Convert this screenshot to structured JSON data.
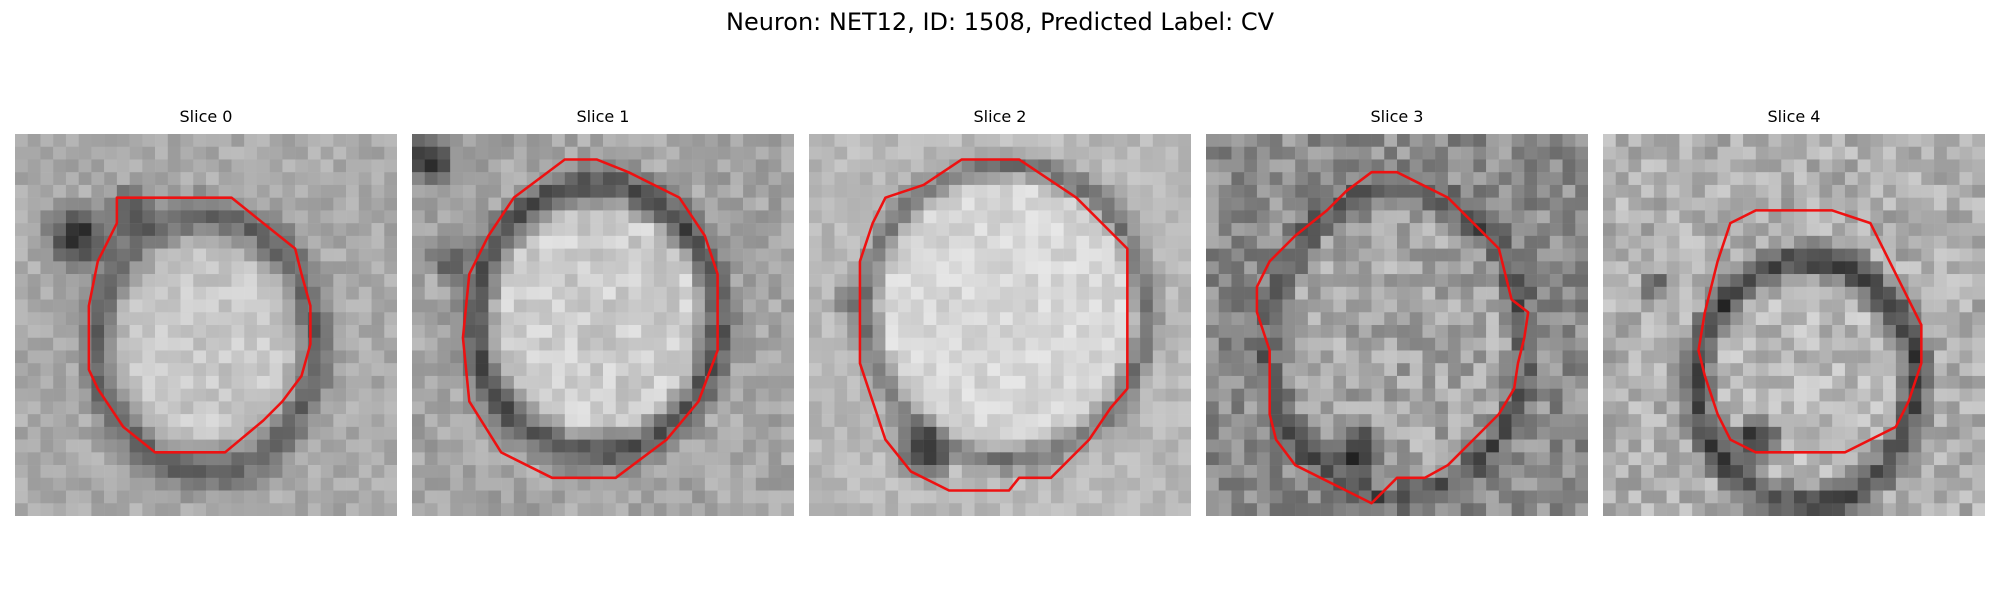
{
  "figure": {
    "title": "Neuron: NET12, ID: 1508, Predicted Label: CV"
  },
  "colors": {
    "contour": "#ee1111",
    "background": "#ffffff"
  },
  "panels": [
    {
      "label": "Slice 0",
      "image": "noisy grayscale EM crop of a vesicle with red outline"
    },
    {
      "label": "Slice 1",
      "image": "noisy grayscale EM crop of a vesicle with red outline"
    },
    {
      "label": "Slice 2",
      "image": "noisy grayscale EM crop of a vesicle with red outline"
    },
    {
      "label": "Slice 3",
      "image": "noisy grayscale EM crop of a vesicle with red outline"
    },
    {
      "label": "Slice 4",
      "image": "noisy grayscale EM crop of a vesicle with red outline"
    }
  ]
}
